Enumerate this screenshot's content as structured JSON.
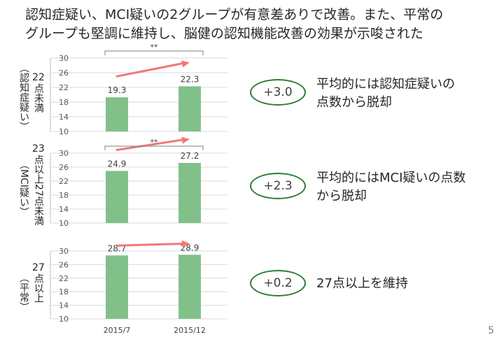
{
  "title": {
    "line1": "認知症疑い、MCI疑いの2グループが有意差ありで改善。また、平常の",
    "line2": "グループも堅調に維持し、脳健の認知機能改善の効果が示唆された"
  },
  "colors": {
    "bar": "#82c08a",
    "arrow": "#f07878",
    "badge_border": "#2e7d32",
    "gridline": "#d9d9d9"
  },
  "chart_data": [
    {
      "type": "bar",
      "group_label": [
        "22",
        "点未満",
        "（認",
        "知症",
        "疑い）"
      ],
      "categories": [
        "2015/7",
        "2015/12"
      ],
      "values": [
        19.3,
        22.3
      ],
      "ylim": [
        10,
        30
      ],
      "yticks": [
        10,
        14,
        18,
        22,
        26,
        30
      ],
      "significance": "**",
      "badge": "+3.0",
      "description": [
        "平均的には認知症疑いの",
        "点数から脱却"
      ]
    },
    {
      "type": "bar",
      "group_label": [
        "23",
        "点以上27",
        "点未満",
        "（MCI疑い）"
      ],
      "categories": [
        "2015/7",
        "2015/12"
      ],
      "values": [
        24.9,
        27.2
      ],
      "ylim": [
        10,
        30
      ],
      "yticks": [
        10,
        14,
        18,
        22,
        26,
        30
      ],
      "significance": "**",
      "badge": "+2.3",
      "description": [
        "平均的にはMCI疑いの点数",
        "から脱却"
      ]
    },
    {
      "type": "bar",
      "group_label": [
        "27",
        "点以上",
        "（平常）"
      ],
      "categories": [
        "2015/7",
        "2015/12"
      ],
      "values": [
        28.7,
        28.9
      ],
      "ylim": [
        10,
        30
      ],
      "yticks": [
        10,
        14,
        18,
        22,
        26,
        30
      ],
      "significance": "",
      "badge": "+0.2",
      "description": [
        "27点以上を維持"
      ]
    }
  ],
  "page_number": "5"
}
